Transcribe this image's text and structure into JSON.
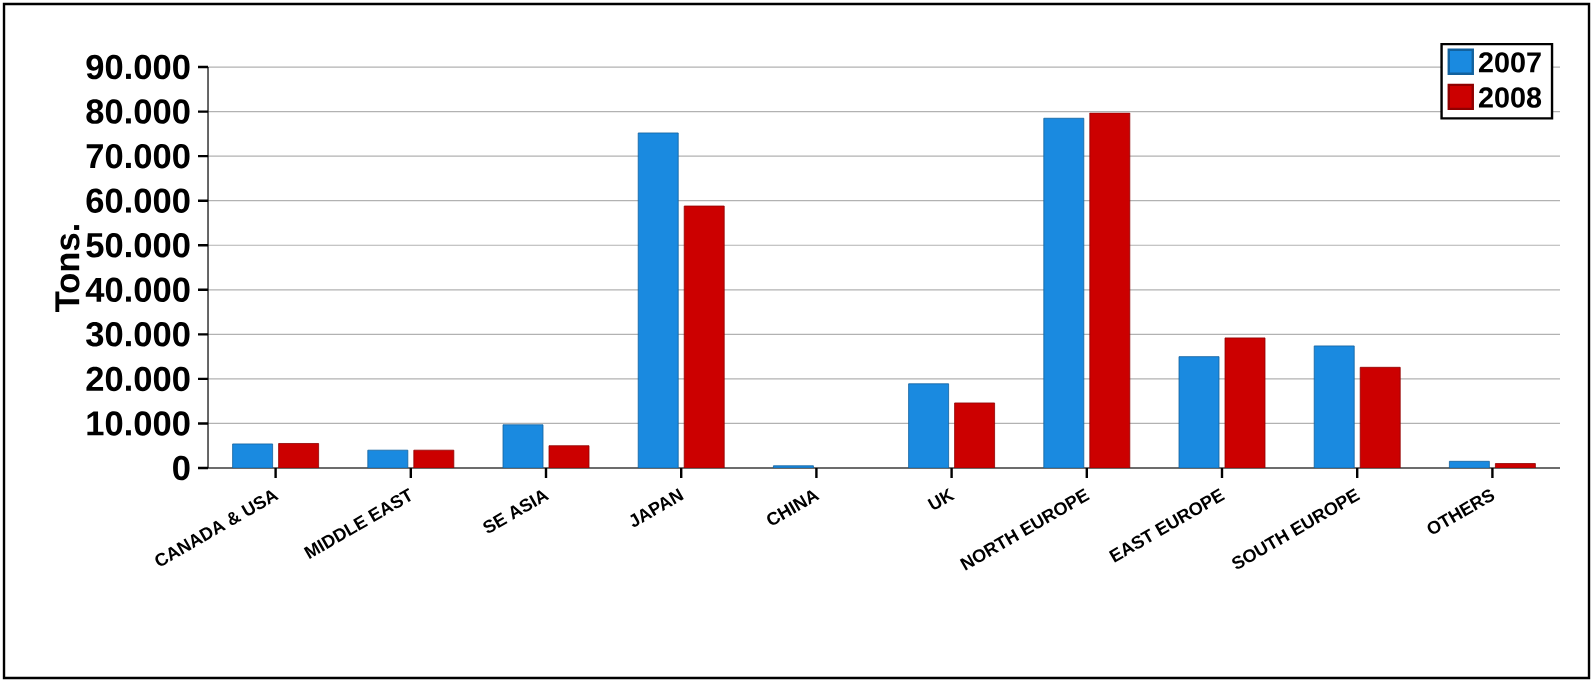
{
  "chart_data": {
    "type": "bar",
    "ylabel": "Tons.",
    "categories": [
      "CANADA & USA",
      "MIDDLE EAST",
      "SE ASIA",
      "JAPAN",
      "CHINA",
      "UK",
      "NORTH EUROPE",
      "EAST EUROPE",
      "SOUTH EUROPE",
      "OTHERS"
    ],
    "series": [
      {
        "name": "2007",
        "color": "#1a8ae0",
        "values": [
          5400,
          4000,
          9700,
          75200,
          500,
          18900,
          78500,
          25000,
          27400,
          1500
        ]
      },
      {
        "name": "2008",
        "color": "#cc0000",
        "values": [
          5500,
          4000,
          5000,
          58800,
          null,
          14600,
          79700,
          29200,
          22600,
          1000
        ]
      }
    ],
    "ylim": [
      0,
      90000
    ],
    "yticks": [
      0,
      {
        "value": 10000,
        "label": "10.000"
      },
      {
        "value": 20000,
        "label": "20.000"
      },
      {
        "value": 30000,
        "label": "30.000"
      },
      {
        "value": 40000,
        "label": "40.000"
      },
      {
        "value": 50000,
        "label": "50.000"
      },
      {
        "value": 60000,
        "label": "60.000"
      },
      {
        "value": 70000,
        "label": "70.000"
      },
      {
        "value": 80000,
        "label": "80.000"
      },
      {
        "value": 90000,
        "label": "90.000"
      }
    ],
    "grid": "y",
    "legend": "top right"
  }
}
